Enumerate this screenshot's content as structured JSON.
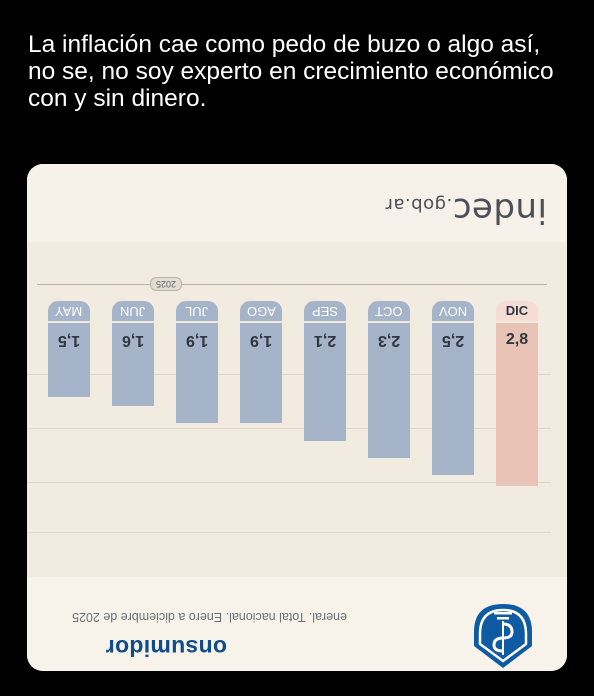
{
  "post": {
    "text": "La inflación cae como pedo de buzo o algo así, no se, no soy experto en crecimiento económico con y sin dinero."
  },
  "card": {
    "logo": {
      "main": "indec",
      "suffix": ".gob.ar"
    },
    "year_tag": "2025",
    "columns": [
      {
        "month": "MAY",
        "value": "1,5",
        "bar_fraction": 0.4,
        "highlight": false
      },
      {
        "month": "JUN",
        "value": "1,6",
        "bar_fraction": 0.45,
        "highlight": false
      },
      {
        "month": "JUL",
        "value": "1,9",
        "bar_fraction": 0.54,
        "highlight": false
      },
      {
        "month": "AGO",
        "value": "1,9",
        "bar_fraction": 0.54,
        "highlight": false
      },
      {
        "month": "SEP",
        "value": "2,1",
        "bar_fraction": 0.64,
        "highlight": false
      },
      {
        "month": "OCT",
        "value": "2,3",
        "bar_fraction": 0.73,
        "highlight": false
      },
      {
        "month": "NOV",
        "value": "2,5",
        "bar_fraction": 0.82,
        "highlight": false
      },
      {
        "month": "DIC",
        "value": "2,8",
        "bar_fraction": 0.88,
        "highlight": true
      }
    ],
    "source": "eneral. Total nacional. Enero a diciembre de 2025",
    "brand": "onsumidor",
    "colors": {
      "bar": "#a5b4c9",
      "highlight_bar": "#e9c4b6",
      "brand": "#0f4c8a"
    }
  }
}
